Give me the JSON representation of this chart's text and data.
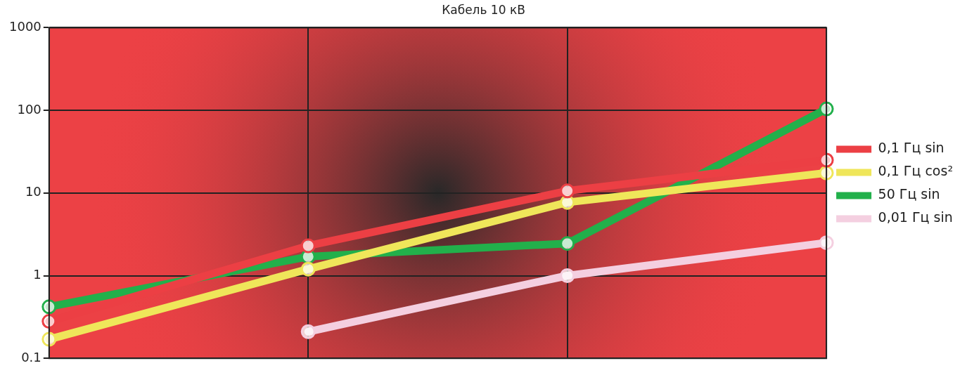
{
  "chart_data": {
    "type": "line",
    "title": "Кабель 10 кВ",
    "categories": [
      null,
      null,
      null,
      null
    ],
    "series": [
      {
        "name": "0,1 Гц sin",
        "color": "#ec3f44",
        "values": [
          0.28,
          2.3,
          10.6,
          25
        ]
      },
      {
        "name": "0,1 Гц cos²",
        "color": "#efe65a",
        "values": [
          0.17,
          1.2,
          7.7,
          17.5
        ]
      },
      {
        "name": "50 Гц sin",
        "color": "#22b04b",
        "values": [
          0.42,
          1.7,
          2.45,
          104
        ]
      },
      {
        "name": "0,01 Гц sin",
        "color": "#f4cfe0",
        "values": [
          null,
          0.21,
          1.0,
          2.5
        ]
      }
    ],
    "log": "y",
    "ylim": [
      0.1,
      1000
    ],
    "yticks": [
      0.1,
      1,
      10,
      100,
      1000
    ],
    "grid": true,
    "legend": "right",
    "tick_labels": "y",
    "marker": "circle",
    "line_style": "solid"
  }
}
